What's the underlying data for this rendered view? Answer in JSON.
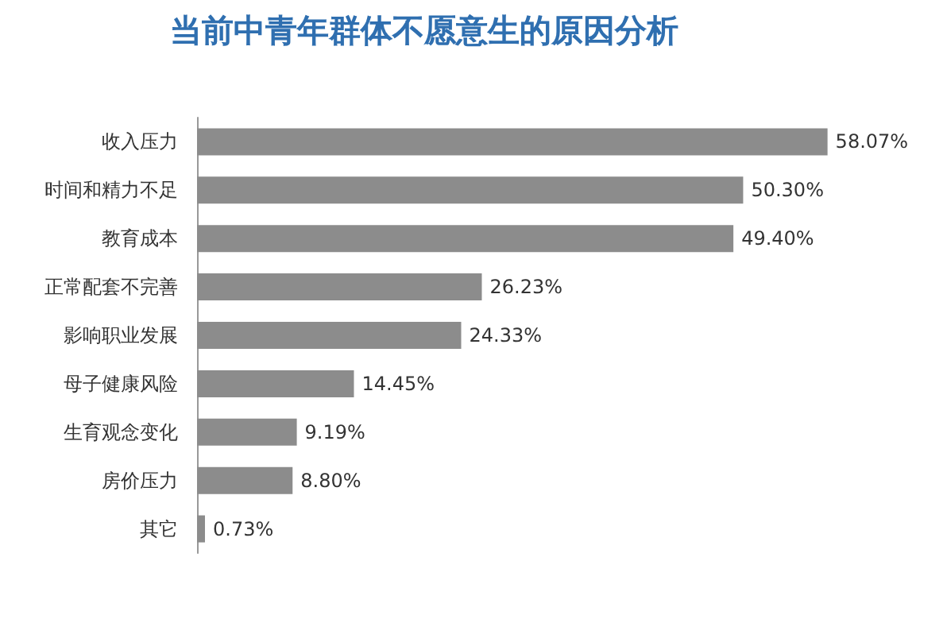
{
  "chart_data": {
    "type": "bar",
    "orientation": "horizontal",
    "title": "当前中青年群体不愿意生的原因分析",
    "categories": [
      "收入压力",
      "时间和精力不足",
      "教育成本",
      "正常配套不完善",
      "影响职业发展",
      "母子健康风险",
      "生育观念变化",
      "房价压力",
      "其它"
    ],
    "values": [
      58.07,
      50.3,
      49.4,
      26.23,
      24.33,
      14.45,
      9.19,
      8.8,
      0.73
    ],
    "value_labels": [
      "58.07%",
      "50.30%",
      "49.40%",
      "26.23%",
      "24.33%",
      "14.45%",
      "9.19%",
      "8.80%",
      "0.73%"
    ],
    "color": "#8c8c8c"
  }
}
